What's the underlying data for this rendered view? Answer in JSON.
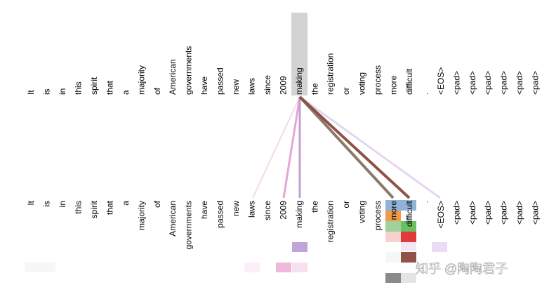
{
  "tokens": [
    "It",
    "is",
    "in",
    "this",
    "spirit",
    "that",
    "a",
    "majority",
    "of",
    "American",
    "governments",
    "have",
    "passed",
    "new",
    "laws",
    "since",
    "2009",
    "making",
    "the",
    "registration",
    "or",
    "voting",
    "process",
    "more",
    "difficult",
    ".",
    "<EOS>",
    "<pad>",
    "<pad>",
    "<pad>",
    "<pad>",
    "<pad>",
    "<pad>"
  ],
  "watermark": "知乎 @陶陶君子"
}
